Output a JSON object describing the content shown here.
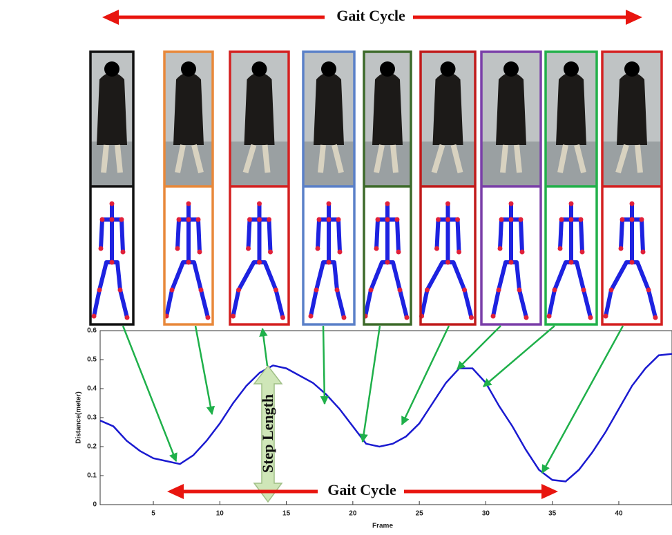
{
  "chart_data": {
    "type": "line",
    "x_label": "Frame",
    "y_label": "Distance(meter)",
    "annotations": [
      "Gait Cycle",
      "Gait Cycle",
      "Step Length"
    ],
    "x": [
      1,
      2,
      3,
      4,
      5,
      6,
      7,
      8,
      9,
      10,
      11,
      12,
      13,
      14,
      15,
      16,
      17,
      18,
      19,
      20,
      21,
      22,
      23,
      24,
      25,
      26,
      27,
      28,
      29,
      30,
      31,
      32,
      33,
      34,
      35,
      36,
      37,
      38,
      39,
      40,
      41,
      42,
      43,
      44
    ],
    "series": [
      {
        "color": "#1a1ad0",
        "values": [
          0.29,
          0.27,
          0.22,
          0.185,
          0.16,
          0.15,
          0.14,
          0.17,
          0.22,
          0.28,
          0.35,
          0.41,
          0.455,
          0.48,
          0.47,
          0.445,
          0.42,
          0.38,
          0.33,
          0.27,
          0.21,
          0.2,
          0.21,
          0.235,
          0.28,
          0.35,
          0.42,
          0.47,
          0.47,
          0.42,
          0.34,
          0.27,
          0.19,
          0.12,
          0.085,
          0.08,
          0.12,
          0.18,
          0.25,
          0.33,
          0.41,
          0.47,
          0.515,
          0.52
        ]
      }
    ],
    "xlim": [
      1,
      44
    ],
    "ylim": [
      0,
      0.6
    ],
    "xticks": [
      5,
      10,
      15,
      20,
      25,
      30,
      35,
      40
    ],
    "yticks": [
      0,
      0.1,
      0.2,
      0.3,
      0.4,
      0.5,
      0.6
    ],
    "grid": false
  }
}
